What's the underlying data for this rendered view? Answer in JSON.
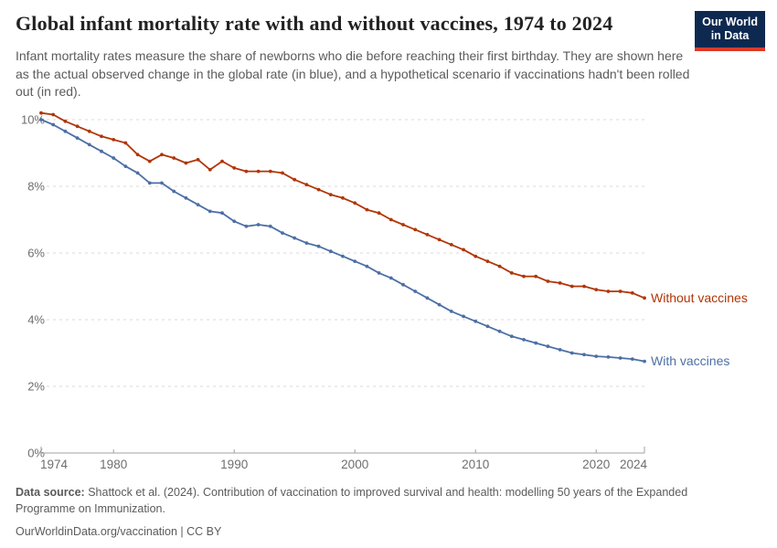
{
  "header": {
    "title": "Global infant mortality rate with and without vaccines, 1974 to 2024",
    "subtitle": "Infant mortality rates measure the share of newborns who die before reaching their first birthday. They are shown here as the actual observed change in the global rate (in blue), and a hypothetical scenario if vaccinations hadn't been rolled out (in red).",
    "logo": {
      "line1": "Our World",
      "line2": "in Data",
      "bg_color": "#0d2950",
      "accent_color": "#d93a2b",
      "text_color": "#ffffff"
    }
  },
  "chart_data": {
    "type": "line",
    "title": "Global infant mortality rate with and without vaccines, 1974 to 2024",
    "xlabel": "",
    "ylabel": "",
    "x": [
      1974,
      1975,
      1976,
      1977,
      1978,
      1979,
      1980,
      1981,
      1982,
      1983,
      1984,
      1985,
      1986,
      1987,
      1988,
      1989,
      1990,
      1991,
      1992,
      1993,
      1994,
      1995,
      1996,
      1997,
      1998,
      1999,
      2000,
      2001,
      2002,
      2003,
      2004,
      2005,
      2006,
      2007,
      2008,
      2009,
      2010,
      2011,
      2012,
      2013,
      2014,
      2015,
      2016,
      2017,
      2018,
      2019,
      2020,
      2021,
      2022,
      2023,
      2024
    ],
    "series": [
      {
        "name": "Without vaccines",
        "color": "#b13507",
        "values": [
          10.2,
          10.15,
          9.95,
          9.8,
          9.65,
          9.5,
          9.4,
          9.3,
          8.95,
          8.75,
          8.95,
          8.85,
          8.7,
          8.8,
          8.5,
          8.75,
          8.55,
          8.45,
          8.45,
          8.45,
          8.4,
          8.2,
          8.05,
          7.9,
          7.75,
          7.65,
          7.5,
          7.3,
          7.2,
          7.0,
          6.85,
          6.7,
          6.55,
          6.4,
          6.25,
          6.1,
          5.9,
          5.75,
          5.6,
          5.4,
          5.3,
          5.3,
          5.15,
          5.1,
          5.0,
          5.0,
          4.9,
          4.85,
          4.85,
          4.8,
          4.65
        ]
      },
      {
        "name": "With vaccines",
        "color": "#4c6fa5",
        "values": [
          10.0,
          9.85,
          9.65,
          9.45,
          9.25,
          9.05,
          8.85,
          8.6,
          8.4,
          8.1,
          8.1,
          7.85,
          7.65,
          7.45,
          7.25,
          7.2,
          6.95,
          6.8,
          6.85,
          6.8,
          6.6,
          6.45,
          6.3,
          6.2,
          6.05,
          5.9,
          5.75,
          5.6,
          5.4,
          5.25,
          5.05,
          4.85,
          4.65,
          4.45,
          4.25,
          4.1,
          3.95,
          3.8,
          3.65,
          3.5,
          3.4,
          3.3,
          3.2,
          3.1,
          3.0,
          2.95,
          2.9,
          2.88,
          2.85,
          2.82,
          2.75
        ]
      }
    ],
    "ylim": [
      0,
      10.5
    ],
    "yticks": [
      0,
      2,
      4,
      6,
      8,
      10
    ],
    "ytick_labels": [
      "0%",
      "2%",
      "4%",
      "6%",
      "8%",
      "10%"
    ],
    "xticks": [
      1974,
      1980,
      1990,
      2000,
      2010,
      2020,
      2024
    ],
    "grid": "horizontal-dashed",
    "legend_position": "line-end-labels"
  },
  "colors": {
    "grid": "#d9d9d9",
    "axis": "#a0a0a0",
    "tick_label": "#6e6e6e"
  },
  "footer": {
    "source_label": "Data source:",
    "source_text": " Shattock et al. (2024). Contribution of vaccination to improved survival and health: modelling 50 years of the Expanded Programme on Immunization.",
    "url": "OurWorldinData.org/vaccination",
    "license": " | CC BY"
  }
}
